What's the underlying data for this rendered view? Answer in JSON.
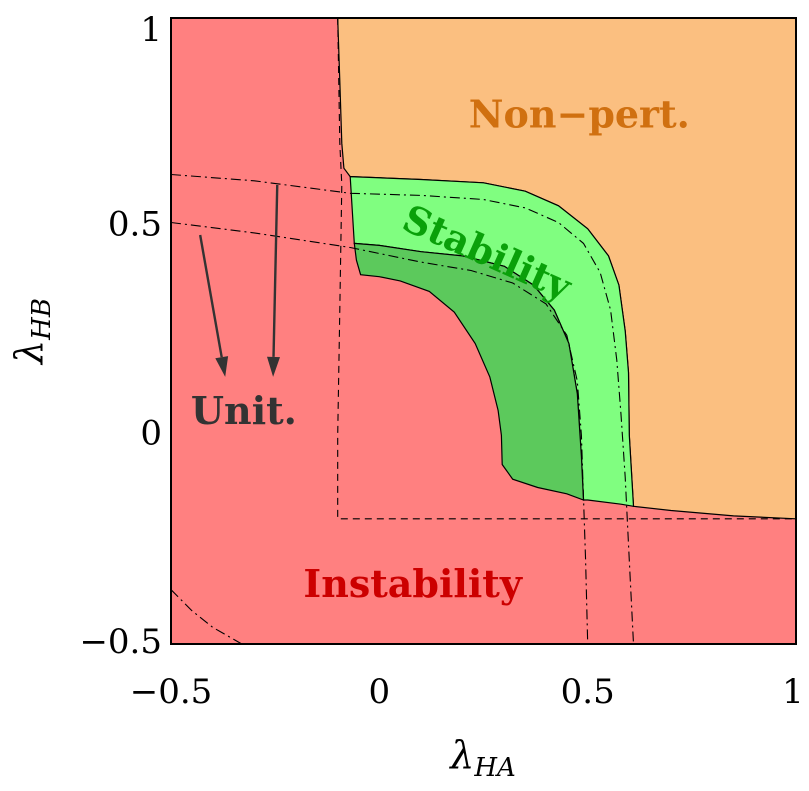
{
  "chart_data": {
    "type": "region",
    "title": "",
    "xlabel": "λ",
    "xlabel_sub": "HA",
    "ylabel": "λ",
    "ylabel_sub": "HB",
    "xlim": [
      -0.5,
      1
    ],
    "ylim": [
      -0.5,
      1
    ],
    "xticks": [
      {
        "value": -0.5,
        "label": "−0.5"
      },
      {
        "value": 0,
        "label": "0"
      },
      {
        "value": 0.5,
        "label": "0.5"
      },
      {
        "value": 1,
        "label": "1"
      }
    ],
    "yticks": [
      {
        "value": -0.5,
        "label": "−0.5"
      },
      {
        "value": 0,
        "label": "0"
      },
      {
        "value": 0.5,
        "label": "0.5"
      },
      {
        "value": 1,
        "label": "1"
      }
    ],
    "colors": {
      "instability": "#ff8080",
      "nonpert": "#fbbf80",
      "stability_light": "#80fe80",
      "stability_dark": "#5cc95c",
      "label_nonpert": "#d07010",
      "label_stability": "#0aa00a",
      "label_instability": "#cc0000",
      "label_unit": "#333333"
    },
    "regions": [
      {
        "name": "Non-pert.",
        "label": "Non−pert.",
        "label_pos": [
          0.48,
          0.76
        ],
        "label_size": 38,
        "color_key": "label_nonpert",
        "fill_key": "nonpert",
        "rotation": 0,
        "boundary": [
          [
            -0.1,
            1
          ],
          [
            1,
            1
          ],
          [
            1,
            -0.2
          ],
          [
            0.85,
            -0.193
          ],
          [
            0.7,
            -0.18
          ],
          [
            0.61,
            -0.17
          ],
          [
            0.6,
            0.0
          ],
          [
            0.598,
            0.15
          ],
          [
            0.59,
            0.25
          ],
          [
            0.575,
            0.36
          ],
          [
            0.55,
            0.43
          ],
          [
            0.5,
            0.495
          ],
          [
            0.43,
            0.55
          ],
          [
            0.35,
            0.585
          ],
          [
            0.25,
            0.605
          ],
          [
            0.1,
            0.613
          ],
          [
            -0.07,
            0.62
          ],
          [
            -0.085,
            0.64
          ],
          [
            -0.09,
            0.7
          ],
          [
            -0.095,
            0.85
          ],
          [
            -0.1,
            1
          ]
        ]
      },
      {
        "name": "Stability",
        "label": "Stability",
        "label_pos": [
          0.255,
          0.43
        ],
        "label_size": 38,
        "color_key": "label_stability",
        "fill_key": "stability_light",
        "rotation": 24,
        "boundary": [
          [
            -0.07,
            0.62
          ],
          [
            0.1,
            0.613
          ],
          [
            0.25,
            0.605
          ],
          [
            0.35,
            0.585
          ],
          [
            0.43,
            0.55
          ],
          [
            0.5,
            0.495
          ],
          [
            0.55,
            0.43
          ],
          [
            0.575,
            0.36
          ],
          [
            0.59,
            0.25
          ],
          [
            0.598,
            0.15
          ],
          [
            0.6,
            0.0
          ],
          [
            0.61,
            -0.17
          ],
          [
            0.58,
            -0.165
          ],
          [
            0.5,
            -0.155
          ],
          [
            0.49,
            -0.155
          ],
          [
            0.485,
            -0.05
          ],
          [
            0.475,
            0.1
          ],
          [
            0.455,
            0.22
          ],
          [
            0.42,
            0.3
          ],
          [
            0.37,
            0.36
          ],
          [
            0.3,
            0.405
          ],
          [
            0.2,
            0.43
          ],
          [
            0.1,
            0.44
          ],
          [
            0.0,
            0.455
          ],
          [
            -0.06,
            0.46
          ],
          [
            -0.07,
            0.62
          ]
        ]
      },
      {
        "name": "Stability (dark band)",
        "label": "",
        "fill_key": "stability_dark",
        "boundary": [
          [
            -0.06,
            0.46
          ],
          [
            0.0,
            0.455
          ],
          [
            0.1,
            0.44
          ],
          [
            0.2,
            0.43
          ],
          [
            0.3,
            0.405
          ],
          [
            0.37,
            0.36
          ],
          [
            0.42,
            0.3
          ],
          [
            0.455,
            0.22
          ],
          [
            0.475,
            0.1
          ],
          [
            0.485,
            -0.05
          ],
          [
            0.49,
            -0.155
          ],
          [
            0.45,
            -0.14
          ],
          [
            0.38,
            -0.125
          ],
          [
            0.32,
            -0.105
          ],
          [
            0.295,
            -0.07
          ],
          [
            0.293,
            0.0
          ],
          [
            0.285,
            0.06
          ],
          [
            0.265,
            0.14
          ],
          [
            0.23,
            0.22
          ],
          [
            0.18,
            0.295
          ],
          [
            0.12,
            0.345
          ],
          [
            0.05,
            0.37
          ],
          [
            0.0,
            0.38
          ],
          [
            -0.045,
            0.385
          ],
          [
            -0.055,
            0.42
          ],
          [
            -0.06,
            0.46
          ]
        ]
      },
      {
        "name": "Instability",
        "label": "Instability",
        "label_pos": [
          0.08,
          -0.365
        ],
        "label_size": 38,
        "color_key": "label_instability",
        "rotation": 0
      },
      {
        "name": "Unit.",
        "label": "Unit.",
        "label_pos": [
          -0.325,
          0.05
        ],
        "label_size": 38,
        "color_key": "label_unit",
        "rotation": 0
      }
    ],
    "lines": [
      {
        "name": "dashed-boundary",
        "style": "dash",
        "points": [
          [
            -0.1,
            1
          ],
          [
            -0.095,
            0.7
          ],
          [
            -0.09,
            0.6
          ],
          [
            -0.095,
            0.3
          ],
          [
            -0.1,
            0.0
          ],
          [
            -0.1,
            -0.2
          ],
          [
            0.0,
            -0.2
          ],
          [
            0.5,
            -0.2
          ],
          [
            1,
            -0.2
          ]
        ]
      },
      {
        "name": "dashdot-upper",
        "style": "dashdot",
        "points": [
          [
            -0.5,
            0.625
          ],
          [
            -0.3,
            0.61
          ],
          [
            -0.07,
            0.58
          ],
          [
            0.1,
            0.575
          ],
          [
            0.25,
            0.565
          ],
          [
            0.35,
            0.545
          ],
          [
            0.43,
            0.51
          ],
          [
            0.49,
            0.46
          ],
          [
            0.53,
            0.39
          ],
          [
            0.555,
            0.3
          ],
          [
            0.57,
            0.18
          ],
          [
            0.58,
            0.05
          ],
          [
            0.59,
            -0.1
          ],
          [
            0.6,
            -0.3
          ],
          [
            0.61,
            -0.5
          ]
        ]
      },
      {
        "name": "dashdot-lower",
        "style": "dashdot",
        "points": [
          [
            -0.5,
            0.51
          ],
          [
            -0.3,
            0.485
          ],
          [
            -0.07,
            0.45
          ],
          [
            0.1,
            0.415
          ],
          [
            0.22,
            0.395
          ],
          [
            0.32,
            0.365
          ],
          [
            0.4,
            0.315
          ],
          [
            0.45,
            0.24
          ],
          [
            0.475,
            0.13
          ],
          [
            0.485,
            0.0
          ],
          [
            0.49,
            -0.15
          ],
          [
            0.495,
            -0.3
          ],
          [
            0.5,
            -0.5
          ]
        ]
      },
      {
        "name": "dashdot-corner",
        "style": "dashdot",
        "points": [
          [
            -0.5,
            -0.37
          ],
          [
            -0.45,
            -0.42
          ],
          [
            -0.4,
            -0.46
          ],
          [
            -0.33,
            -0.5
          ]
        ]
      }
    ],
    "arrows": [
      {
        "from": [
          -0.245,
          0.6
        ],
        "to": [
          -0.255,
          0.14
        ]
      },
      {
        "from": [
          -0.43,
          0.48
        ],
        "to": [
          -0.37,
          0.14
        ]
      }
    ]
  }
}
